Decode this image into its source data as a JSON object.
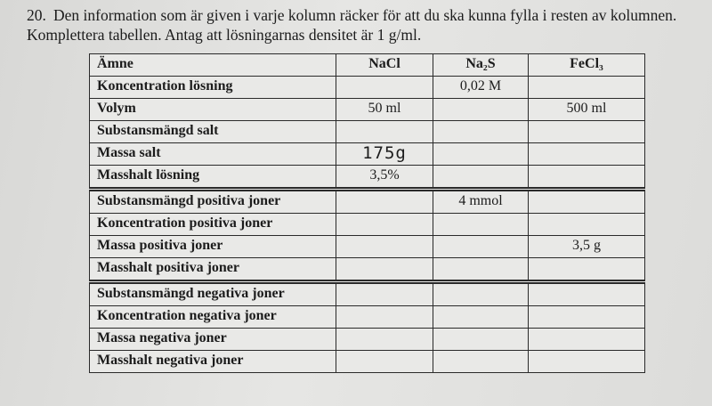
{
  "question": {
    "number": "20.",
    "text": "Den information som är given i varje kolumn räcker för att du ska kunna fylla i resten av kolumnen. Komplettera tabellen. Antag att lösningarnas densitet är 1 g/ml."
  },
  "table": {
    "header": [
      "Ämne",
      "NaCl",
      "Na₂S",
      "FeCl₃"
    ],
    "rows": [
      [
        "Koncentration lösning",
        null,
        "0,02 M",
        null
      ],
      [
        "Volym",
        "50 ml",
        null,
        "500 ml"
      ],
      [
        "Substansmängd salt",
        null,
        null,
        null
      ],
      [
        "Massa salt",
        "175g",
        null,
        null
      ],
      [
        "Masshalt lösning",
        "3,5%",
        null,
        null
      ],
      [
        "Substansmängd positiva joner",
        null,
        "4 mmol",
        null
      ],
      [
        "Koncentration positiva joner",
        null,
        null,
        null
      ],
      [
        "Massa positiva joner",
        null,
        null,
        "3,5 g"
      ],
      [
        "Masshalt positiva joner",
        null,
        null,
        null
      ],
      [
        "Substansmängd negativa joner",
        null,
        null,
        null
      ],
      [
        "Koncentration negativa joner",
        null,
        null,
        null
      ],
      [
        "Massa negativa joner",
        null,
        null,
        null
      ],
      [
        "Masshalt negativa joner",
        null,
        null,
        null
      ]
    ]
  }
}
